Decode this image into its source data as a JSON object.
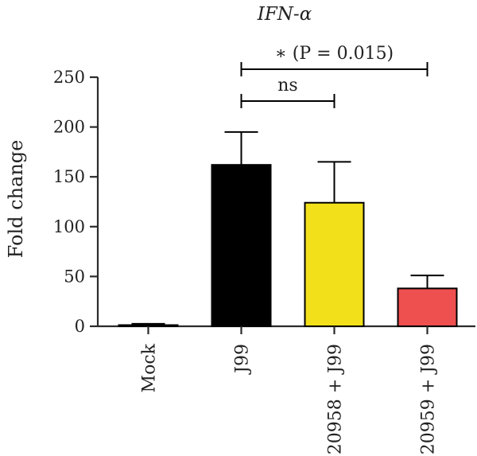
{
  "chart_data": {
    "type": "bar",
    "title": "IFN-α",
    "ylabel": "Fold change",
    "xlabel": "",
    "ylim": [
      0,
      250
    ],
    "yticks": [
      0,
      50,
      100,
      150,
      200,
      250
    ],
    "categories": [
      "Mock",
      "J99",
      "20958 + J99",
      "20959 + J99"
    ],
    "values": [
      1,
      162,
      124,
      38
    ],
    "error_upper": [
      2.5,
      195,
      165,
      51
    ],
    "bar_colors": [
      "#000000",
      "#000000",
      "#f2e01a",
      "#ee4f4f"
    ],
    "significance": [
      {
        "from": "J99",
        "to": "20958 + J99",
        "label": "ns"
      },
      {
        "from": "J99",
        "to": "20959 + J99",
        "label": "∗ (P = 0.015)"
      }
    ]
  }
}
